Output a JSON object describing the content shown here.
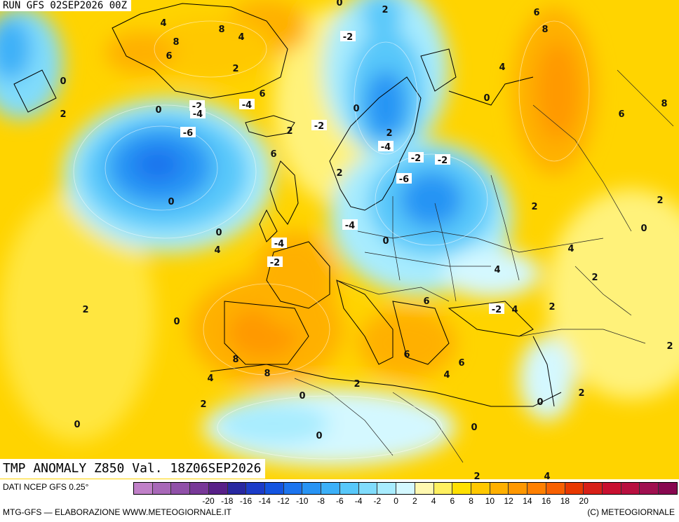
{
  "header": {
    "run": "RUN GFS 02SEP2026 00Z",
    "param": "TMP ANOMALY Z850 Val. 18Z06SEP2026"
  },
  "footer": {
    "data_source": "DATI NCEP GFS 0.25°",
    "credit": "MTG-GFS — ELABORAZIONE WWW.METEOGIORNALE.IT",
    "copyright": "(C) METEOGIORNALE"
  },
  "legend": {
    "colors": [
      "#c080c8",
      "#a868b8",
      "#9050a8",
      "#783898",
      "#582088",
      "#2828a0",
      "#1c3cc8",
      "#1454e0",
      "#1c74ee",
      "#2894f4",
      "#3cb0f8",
      "#58c8fa",
      "#80dcfc",
      "#a8ecfe",
      "#d4f8ff",
      "#fff8b0",
      "#fff060",
      "#ffe000",
      "#ffc800",
      "#ffb000",
      "#ff9800",
      "#ff8000",
      "#f86000",
      "#e83800",
      "#d82018",
      "#c81030",
      "#b81040",
      "#a01050",
      "#880850"
    ],
    "ticks": [
      "-20",
      "-18",
      "-16",
      "-14",
      "-12",
      "-10",
      "-8",
      "-6",
      "-4",
      "-2",
      "0",
      "2",
      "4",
      "6",
      "8",
      "10",
      "12",
      "14",
      "16",
      "18",
      "20"
    ]
  },
  "anomaly_labels": [
    "4",
    "8",
    "8",
    "4",
    "6",
    "2",
    "0",
    "6",
    "2",
    "-2",
    "-4",
    "0",
    "-6",
    "-4",
    "2",
    "6",
    "0",
    "0",
    "4",
    "2",
    "-2",
    "0",
    "6",
    "8",
    "0",
    "2",
    "-4",
    "-2",
    "-2",
    "-6",
    "-4",
    "0",
    "-4",
    "-2",
    "-2",
    "0",
    "6",
    "4",
    "8",
    "2",
    "4",
    "6",
    "4",
    "2",
    "2",
    "0",
    "2",
    "-2",
    "4",
    "2",
    "2",
    "0",
    "8",
    "6",
    "4",
    "8",
    "6",
    "4",
    "2",
    "2",
    "0",
    "0",
    "0",
    "2",
    "0",
    "2",
    "0",
    "2",
    "4"
  ]
}
